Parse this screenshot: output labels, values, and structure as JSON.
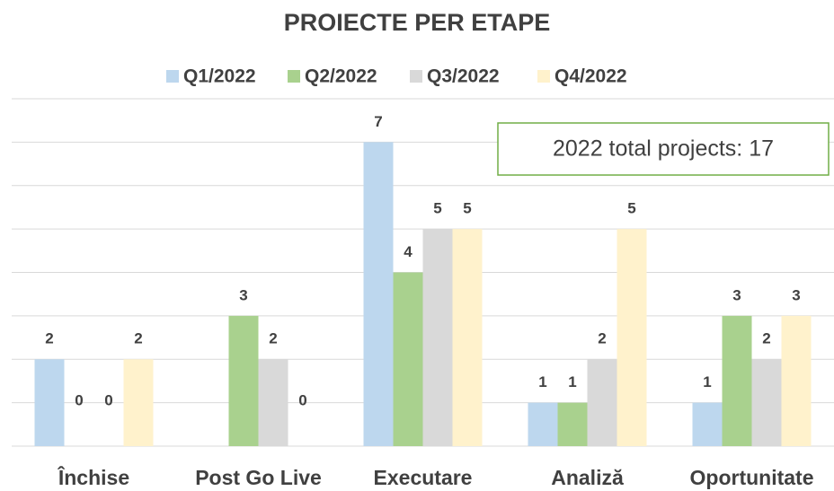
{
  "chart_data": {
    "type": "bar",
    "title": "PROIECTE PER ETAPE",
    "categories": [
      "Închise",
      "Post Go Live",
      "Executare",
      "Analiză",
      "Oportunitate"
    ],
    "series": [
      {
        "name": "Q1/2022",
        "color": "#bdd7ee",
        "values": [
          2,
          null,
          7,
          1,
          1
        ]
      },
      {
        "name": "Q2/2022",
        "color": "#a9d18e",
        "values": [
          0,
          3,
          4,
          1,
          3
        ]
      },
      {
        "name": "Q3/2022",
        "color": "#d9d9d9",
        "values": [
          0,
          2,
          5,
          2,
          2
        ]
      },
      {
        "name": "Q4/2022",
        "color": "#fff2cc",
        "values": [
          2,
          0,
          5,
          5,
          3
        ]
      }
    ],
    "ylim": [
      0,
      8
    ],
    "yticks": [
      0,
      1,
      2,
      3,
      4,
      5,
      6,
      7,
      8
    ],
    "grid": true,
    "annotation": "2022 total projects: 17"
  }
}
